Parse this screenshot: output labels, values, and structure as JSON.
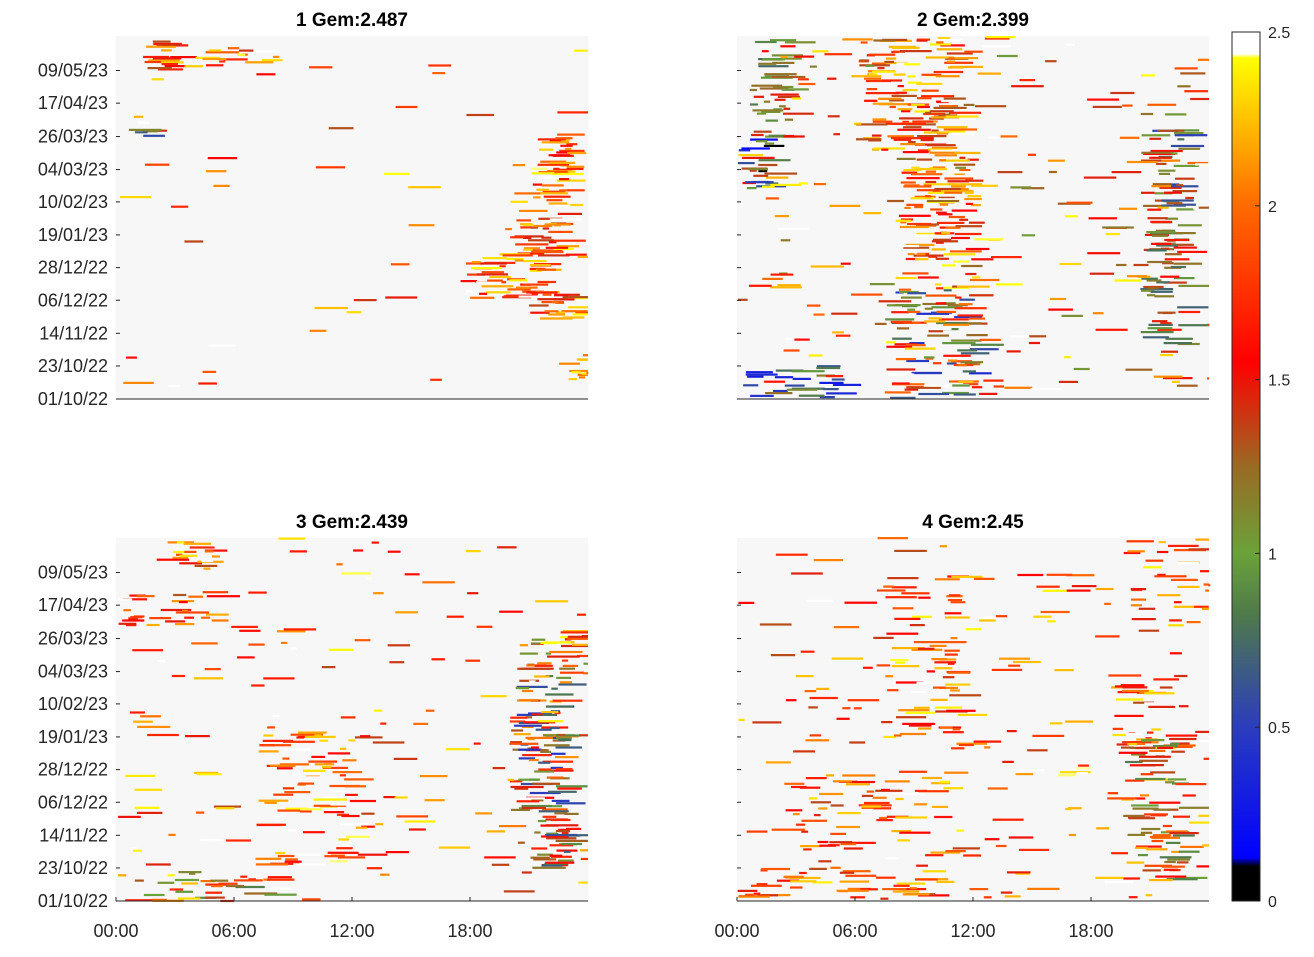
{
  "chart_data": [
    {
      "type": "heatmap",
      "panel": 1,
      "title": "1 Gem:2.487",
      "ytick_labels": [
        "09/05/23",
        "17/04/23",
        "26/03/23",
        "04/03/23",
        "10/02/23",
        "19/01/23",
        "28/12/22",
        "06/12/22",
        "14/11/22",
        "23/10/22",
        "01/10/22"
      ],
      "xtick_labels": [],
      "x_range_hours": [
        0,
        24
      ],
      "y_range": [
        "01/10/22",
        "31/05/23"
      ],
      "clusters": [
        {
          "x": [
            1.2,
            2.8
          ],
          "y": [
            0.9,
            0.99
          ],
          "v": [
            1.3,
            2.3
          ],
          "n": 16
        },
        {
          "x": [
            3.0,
            8.5
          ],
          "y": [
            0.9,
            0.97
          ],
          "v": [
            1.4,
            2.5
          ],
          "n": 16
        },
        {
          "x": [
            0.5,
            1.8
          ],
          "y": [
            0.72,
            0.76
          ],
          "v": [
            0.3,
            1.5
          ],
          "n": 5
        },
        {
          "x": [
            21.0,
            23.0
          ],
          "y": [
            0.57,
            0.73
          ],
          "v": [
            1.4,
            2.5
          ],
          "n": 40
        },
        {
          "x": [
            20.0,
            22.5
          ],
          "y": [
            0.4,
            0.57
          ],
          "v": [
            1.3,
            2.5
          ],
          "n": 44
        },
        {
          "x": [
            17.5,
            21.5
          ],
          "y": [
            0.28,
            0.4
          ],
          "v": [
            1.4,
            2.5
          ],
          "n": 48
        },
        {
          "x": [
            21.0,
            23.5
          ],
          "y": [
            0.22,
            0.3
          ],
          "v": [
            1.3,
            2.5
          ],
          "n": 22
        },
        {
          "x": [
            23.0,
            24.0
          ],
          "y": [
            0.05,
            0.13
          ],
          "v": [
            2.0,
            2.5
          ],
          "n": 10
        },
        {
          "x": [
            0.0,
            24.0
          ],
          "y": [
            0.0,
            1.0
          ],
          "v": [
            1.3,
            2.5
          ],
          "n": 45
        }
      ]
    },
    {
      "type": "heatmap",
      "panel": 2,
      "title": "2 Gem:2.399",
      "ytick_labels": [],
      "xtick_labels": [],
      "x_range_hours": [
        0,
        24
      ],
      "y_range": [
        "01/10/22",
        "31/05/23"
      ],
      "clusters": [
        {
          "x": [
            0.5,
            2.5
          ],
          "y": [
            0.7,
            1.0
          ],
          "v": [
            0.7,
            1.6
          ],
          "n": 40
        },
        {
          "x": [
            6.0,
            11.0
          ],
          "y": [
            0.68,
            1.0
          ],
          "v": [
            1.3,
            2.5
          ],
          "n": 120
        },
        {
          "x": [
            0.0,
            1.5
          ],
          "y": [
            0.58,
            0.72
          ],
          "v": [
            0.0,
            1.6
          ],
          "n": 20
        },
        {
          "x": [
            8.0,
            12.0
          ],
          "y": [
            0.3,
            0.68
          ],
          "v": [
            1.3,
            2.5
          ],
          "n": 110
        },
        {
          "x": [
            7.5,
            12.0
          ],
          "y": [
            0.0,
            0.3
          ],
          "v": [
            0.4,
            2.0
          ],
          "n": 80
        },
        {
          "x": [
            0.0,
            5.0
          ],
          "y": [
            0.0,
            0.1
          ],
          "v": [
            0.2,
            1.2
          ],
          "n": 25
        },
        {
          "x": [
            20.5,
            22.5
          ],
          "y": [
            0.5,
            0.75
          ],
          "v": [
            0.5,
            1.6
          ],
          "n": 40
        },
        {
          "x": [
            20.5,
            22.5
          ],
          "y": [
            0.15,
            0.5
          ],
          "v": [
            0.7,
            1.7
          ],
          "n": 60
        },
        {
          "x": [
            0.0,
            24.0
          ],
          "y": [
            0.0,
            1.0
          ],
          "v": [
            1.0,
            2.5
          ],
          "n": 200
        }
      ]
    },
    {
      "type": "heatmap",
      "panel": 3,
      "title": "3 Gem:2.439",
      "ytick_labels": [
        "09/05/23",
        "17/04/23",
        "26/03/23",
        "04/03/23",
        "10/02/23",
        "19/01/23",
        "28/12/22",
        "06/12/22",
        "14/11/22",
        "23/10/22",
        "01/10/22"
      ],
      "xtick_labels": [
        "00:00",
        "06:00",
        "12:00",
        "18:00"
      ],
      "x_range_hours": [
        0,
        24
      ],
      "y_range": [
        "01/10/22",
        "31/05/23"
      ],
      "clusters": [
        {
          "x": [
            2.5,
            5.0
          ],
          "y": [
            0.92,
            1.0
          ],
          "v": [
            1.5,
            2.5
          ],
          "n": 14
        },
        {
          "x": [
            0.0,
            5.0
          ],
          "y": [
            0.76,
            0.86
          ],
          "v": [
            1.4,
            2.2
          ],
          "n": 24
        },
        {
          "x": [
            20.5,
            24.0
          ],
          "y": [
            0.62,
            0.75
          ],
          "v": [
            1.0,
            2.5
          ],
          "n": 32
        },
        {
          "x": [
            20.0,
            22.5
          ],
          "y": [
            0.25,
            0.62
          ],
          "v": [
            0.4,
            2.3
          ],
          "n": 90
        },
        {
          "x": [
            21.0,
            23.0
          ],
          "y": [
            0.08,
            0.25
          ],
          "v": [
            0.6,
            1.8
          ],
          "n": 40
        },
        {
          "x": [
            7.0,
            12.0
          ],
          "y": [
            0.1,
            0.48
          ],
          "v": [
            1.5,
            2.5
          ],
          "n": 80
        },
        {
          "x": [
            0.0,
            8.0
          ],
          "y": [
            0.0,
            0.08
          ],
          "v": [
            0.8,
            2.4
          ],
          "n": 30
        },
        {
          "x": [
            0.0,
            24.0
          ],
          "y": [
            0.0,
            1.0
          ],
          "v": [
            1.3,
            2.5
          ],
          "n": 140
        }
      ]
    },
    {
      "type": "heatmap",
      "panel": 4,
      "title": "4 Gem:2.45",
      "ytick_labels": [],
      "xtick_labels": [
        "00:00",
        "06:00",
        "12:00",
        "18:00"
      ],
      "x_range_hours": [
        0,
        24
      ],
      "y_range": [
        "01/10/22",
        "31/05/23"
      ],
      "clusters": [
        {
          "x": [
            20.0,
            24.0
          ],
          "y": [
            0.75,
            1.0
          ],
          "v": [
            1.4,
            2.5
          ],
          "n": 30
        },
        {
          "x": [
            7.0,
            11.0
          ],
          "y": [
            0.45,
            0.9
          ],
          "v": [
            1.3,
            2.5
          ],
          "n": 60
        },
        {
          "x": [
            19.0,
            22.0
          ],
          "y": [
            0.42,
            0.6
          ],
          "v": [
            1.3,
            2.5
          ],
          "n": 24
        },
        {
          "x": [
            19.5,
            22.5
          ],
          "y": [
            0.05,
            0.45
          ],
          "v": [
            0.8,
            2.3
          ],
          "n": 80
        },
        {
          "x": [
            3.0,
            10.0
          ],
          "y": [
            0.0,
            0.35
          ],
          "v": [
            1.3,
            2.5
          ],
          "n": 70
        },
        {
          "x": [
            0.0,
            3.0
          ],
          "y": [
            0.0,
            0.1
          ],
          "v": [
            1.4,
            2.5
          ],
          "n": 16
        },
        {
          "x": [
            0.0,
            24.0
          ],
          "y": [
            0.0,
            1.0
          ],
          "v": [
            1.3,
            2.5
          ],
          "n": 180
        }
      ]
    }
  ],
  "colorbar": {
    "range": [
      0,
      2.5
    ],
    "tick_labels": [
      "0",
      "0.5",
      "1",
      "1.5",
      "2",
      "2.5"
    ],
    "colormap": [
      [
        0.0,
        "#000000"
      ],
      [
        0.04,
        "#000000"
      ],
      [
        0.05,
        "#0000ff"
      ],
      [
        0.2,
        "#2b3dbd"
      ],
      [
        0.33,
        "#4f7a4a"
      ],
      [
        0.4,
        "#6aa23a"
      ],
      [
        0.5,
        "#9a6a25"
      ],
      [
        0.62,
        "#ff0000"
      ],
      [
        0.8,
        "#ff6a00"
      ],
      [
        0.97,
        "#ffff00"
      ],
      [
        0.975,
        "#ffffff"
      ],
      [
        1.0,
        "#ffffff"
      ]
    ]
  },
  "background_color": "#f7f7f7"
}
